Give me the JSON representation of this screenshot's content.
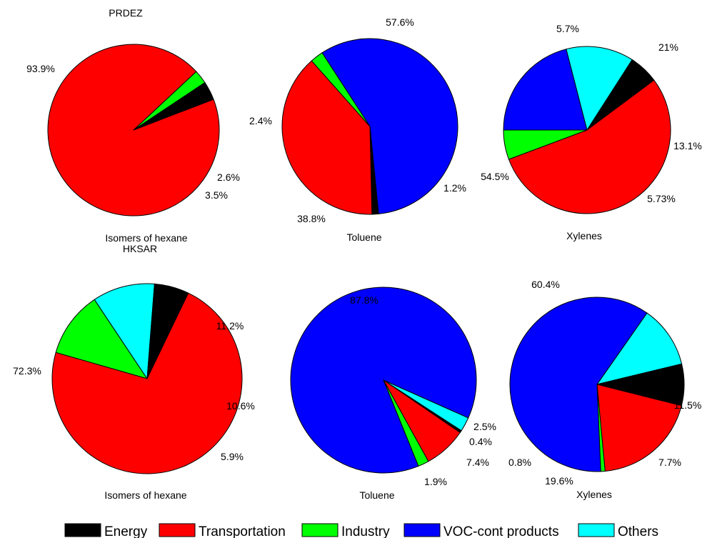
{
  "legend": [
    {
      "key": "energy",
      "label": "Energy",
      "color": "#000000"
    },
    {
      "key": "transportation",
      "label": "Transportation",
      "color": "#ff0000"
    },
    {
      "key": "industry",
      "label": "Industry",
      "color": "#00ff00"
    },
    {
      "key": "voc",
      "label": "VOC-cont products",
      "color": "#0000ff"
    },
    {
      "key": "others",
      "label": "Others",
      "color": "#00ffff"
    }
  ],
  "chart_data": [
    {
      "type": "pie",
      "region": "PRDEZ",
      "title": "Isomers of hexane",
      "slices": [
        {
          "category": "transportation",
          "value": 93.9,
          "label": "93.9%"
        },
        {
          "category": "industry",
          "value": 2.6,
          "label": "2.6%"
        },
        {
          "category": "energy",
          "value": 3.5,
          "label": "3.5%"
        }
      ]
    },
    {
      "type": "pie",
      "region": "",
      "title": "Toluene",
      "slices": [
        {
          "category": "voc",
          "value": 57.6,
          "label": "57.6%"
        },
        {
          "category": "energy",
          "value": 1.2,
          "label": "1.2%"
        },
        {
          "category": "transportation",
          "value": 38.8,
          "label": "38.8%"
        },
        {
          "category": "industry",
          "value": 2.4,
          "label": "2.4%"
        }
      ]
    },
    {
      "type": "pie",
      "region": "",
      "title": "Xylenes",
      "slices": [
        {
          "category": "voc",
          "value": 21,
          "label": "21%"
        },
        {
          "category": "others",
          "value": 13.1,
          "label": "13.1%"
        },
        {
          "category": "energy",
          "value": 5.73,
          "label": "5.73%"
        },
        {
          "category": "transportation",
          "value": 54.5,
          "label": "54.5%"
        },
        {
          "category": "industry",
          "value": 5.7,
          "label": "5.7%"
        }
      ]
    },
    {
      "type": "pie",
      "region": "HKSAR",
      "title": "Isomers of hexane",
      "slices": [
        {
          "category": "industry",
          "value": 11.2,
          "label": "11.2%"
        },
        {
          "category": "others",
          "value": 10.6,
          "label": "10.6%"
        },
        {
          "category": "energy",
          "value": 5.9,
          "label": "5.9%"
        },
        {
          "category": "transportation",
          "value": 72.3,
          "label": "72.3%"
        }
      ]
    },
    {
      "type": "pie",
      "region": "",
      "title": "Toluene",
      "slices": [
        {
          "category": "others",
          "value": 2.5,
          "label": "2.5%"
        },
        {
          "category": "energy",
          "value": 0.4,
          "label": "0.4%"
        },
        {
          "category": "transportation",
          "value": 7.4,
          "label": "7.4%"
        },
        {
          "category": "industry",
          "value": 1.9,
          "label": "1.9%"
        },
        {
          "category": "voc",
          "value": 87.8,
          "label": "87.8%"
        }
      ]
    },
    {
      "type": "pie",
      "region": "",
      "title": "Xylenes",
      "slices": [
        {
          "category": "others",
          "value": 11.5,
          "label": "11.5%"
        },
        {
          "category": "energy",
          "value": 7.7,
          "label": "7.7%"
        },
        {
          "category": "transportation",
          "value": 19.6,
          "label": "19.6%"
        },
        {
          "category": "industry",
          "value": 0.8,
          "label": "0.8%"
        },
        {
          "category": "voc",
          "value": 60.4,
          "label": "60.4%"
        }
      ]
    }
  ]
}
